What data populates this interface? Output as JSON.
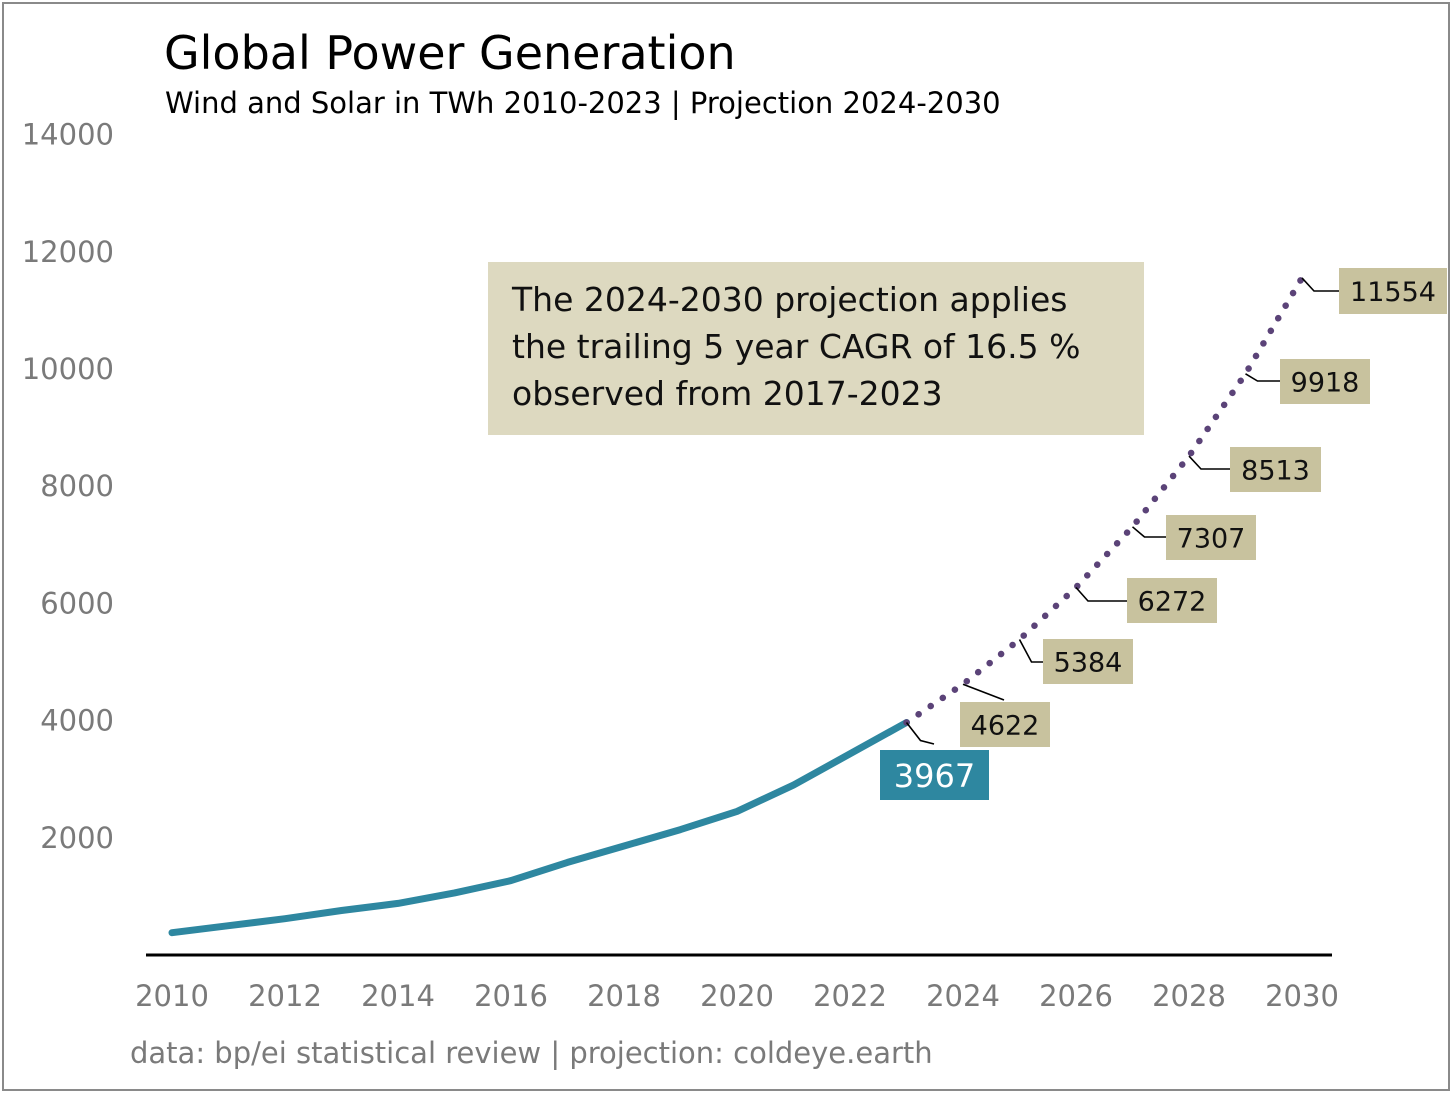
{
  "chart_data": {
    "type": "line",
    "title": "Global Power Generation",
    "subtitle": "Wind and Solar in TWh 2010-2023 | Projection 2024-2030",
    "source": "data: bp/ei statistical review | projection: coldeye.earth",
    "annotation": [
      "The 2024-2030 projection applies",
      "the trailing 5 year CAGR of 16.5 %",
      "observed from 2017-2023"
    ],
    "xlim": [
      2010,
      2030
    ],
    "ylim": [
      0,
      14000
    ],
    "xticks": [
      "2010",
      "2012",
      "2014",
      "2016",
      "2018",
      "2020",
      "2022",
      "2024",
      "2026",
      "2028",
      "2030"
    ],
    "yticks": [
      "2000",
      "4000",
      "6000",
      "8000",
      "10000",
      "12000",
      "14000"
    ],
    "grid": false,
    "series": [
      {
        "style": "solid",
        "color": "#2e87a0",
        "x": [
          2010,
          2011,
          2012,
          2013,
          2014,
          2015,
          2016,
          2017,
          2018,
          2019,
          2020,
          2021,
          2023
        ],
        "y": [
          380,
          500,
          620,
          760,
          880,
          1060,
          1270,
          1580,
          1860,
          2140,
          2450,
          2900,
          3967
        ]
      },
      {
        "style": "dotted",
        "color": "#5b4378",
        "x": [
          2023,
          2024,
          2025,
          2026,
          2027,
          2028,
          2029,
          2030
        ],
        "y": [
          3967,
          4622,
          5384,
          6272,
          7307,
          8513,
          9918,
          11554
        ]
      }
    ],
    "labels": [
      {
        "year": 2023,
        "text": "3967",
        "highlight": true
      },
      {
        "year": 2024,
        "text": "4622"
      },
      {
        "year": 2025,
        "text": "5384"
      },
      {
        "year": 2026,
        "text": "6272"
      },
      {
        "year": 2027,
        "text": "7307"
      },
      {
        "year": 2028,
        "text": "8513"
      },
      {
        "year": 2029,
        "text": "9918"
      },
      {
        "year": 2030,
        "text": "11554"
      }
    ],
    "colors": {
      "history": "#2e87a0",
      "projection": "#5b4378",
      "label_box": "#c8c29e",
      "annotation_box": "#ddd9c0"
    }
  }
}
